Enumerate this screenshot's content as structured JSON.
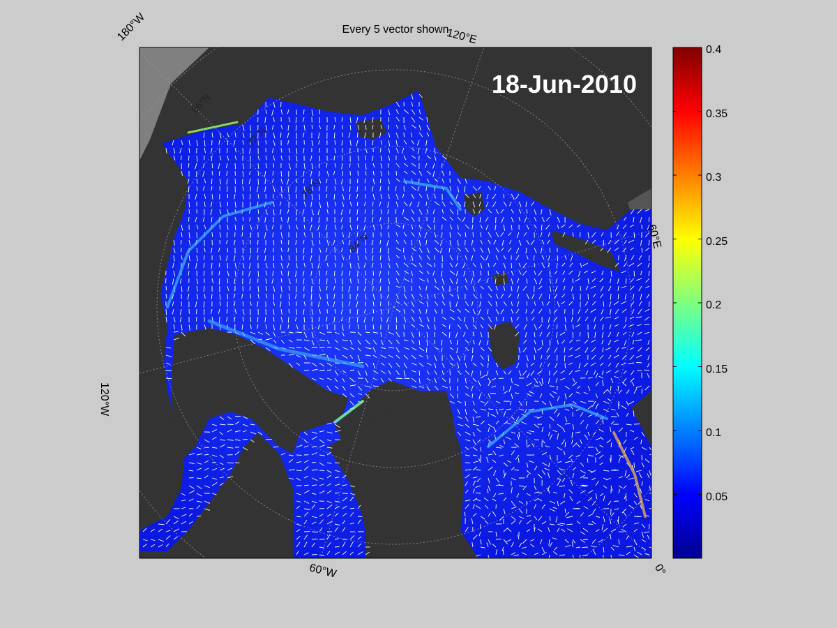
{
  "figure": {
    "title": "Every 5 vector shown",
    "date": "18-Jun-2010"
  },
  "map": {
    "lon_labels": [
      "180°W",
      "120°E",
      "60°E",
      "0°",
      "60°W",
      "120°W"
    ],
    "lat_labels": [
      "66°N",
      "72°N",
      "78°N",
      "84°N"
    ],
    "colors": {
      "land": "#333333",
      "land_outside": "#808080",
      "ocean_low": "#1e3cff",
      "ocean_mid": "#0a14e8",
      "vector": "#ffffff",
      "grid": "#9a9a9a"
    }
  },
  "colorbar": {
    "min": 0,
    "max": 0.4,
    "tick_labels": [
      "0.4",
      "0.35",
      "0.3",
      "0.25",
      "0.2",
      "0.15",
      "0.1",
      "0.05"
    ],
    "tick_values": [
      0.4,
      0.35,
      0.3,
      0.25,
      0.2,
      0.15,
      0.1,
      0.05
    ],
    "colormap": "jet"
  }
}
